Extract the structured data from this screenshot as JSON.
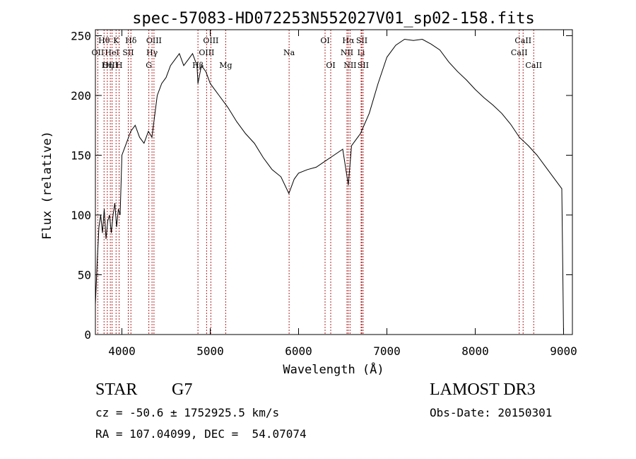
{
  "chart_data": {
    "type": "line",
    "title": "spec-57083-HD072253N552027V01_sp02-158.fits",
    "xlabel": "Wavelength (Å)",
    "ylabel": "Flux (relative)",
    "xlim": [
      3700,
      9100
    ],
    "ylim": [
      0,
      255
    ],
    "xticks": [
      {
        "value": 4000,
        "label": "4000"
      },
      {
        "value": 5000,
        "label": "5000"
      },
      {
        "value": 6000,
        "label": "6000"
      },
      {
        "value": 7000,
        "label": "7000"
      },
      {
        "value": 8000,
        "label": "8000"
      },
      {
        "value": 9000,
        "label": "9000"
      }
    ],
    "yticks": [
      {
        "value": 0,
        "label": "0"
      },
      {
        "value": 50,
        "label": "50"
      },
      {
        "value": 100,
        "label": "100"
      },
      {
        "value": 150,
        "label": "150"
      },
      {
        "value": 200,
        "label": "200"
      },
      {
        "value": 250,
        "label": "250"
      }
    ],
    "series": [
      {
        "name": "flux",
        "x": [
          3700,
          3720,
          3740,
          3760,
          3780,
          3800,
          3820,
          3840,
          3860,
          3880,
          3900,
          3920,
          3940,
          3960,
          3980,
          4000,
          4050,
          4100,
          4150,
          4200,
          4250,
          4300,
          4340,
          4400,
          4450,
          4500,
          4550,
          4600,
          4650,
          4700,
          4750,
          4800,
          4850,
          4861,
          4900,
          4950,
          5000,
          5100,
          5200,
          5300,
          5400,
          5500,
          5600,
          5700,
          5800,
          5890,
          5950,
          6000,
          6100,
          6200,
          6300,
          6400,
          6500,
          6563,
          6600,
          6700,
          6800,
          6900,
          7000,
          7100,
          7200,
          7300,
          7400,
          7500,
          7600,
          7700,
          7800,
          7900,
          8000,
          8100,
          8200,
          8300,
          8400,
          8500,
          8600,
          8700,
          8800,
          8900,
          8980,
          9000
        ],
        "y": [
          25,
          60,
          90,
          100,
          85,
          105,
          80,
          95,
          100,
          85,
          100,
          110,
          90,
          105,
          100,
          150,
          160,
          170,
          175,
          165,
          160,
          170,
          165,
          200,
          210,
          215,
          225,
          230,
          235,
          225,
          230,
          235,
          225,
          210,
          225,
          220,
          210,
          200,
          190,
          178,
          168,
          160,
          148,
          138,
          132,
          118,
          130,
          135,
          138,
          140,
          145,
          150,
          155,
          125,
          158,
          168,
          185,
          210,
          232,
          242,
          247,
          246,
          247,
          243,
          238,
          228,
          220,
          213,
          205,
          198,
          192,
          185,
          176,
          165,
          158,
          150,
          140,
          130,
          122,
          0
        ]
      }
    ],
    "line_color": "#000000",
    "spectral_lines": [
      {
        "label": "Hθ",
        "wavelength": 3798,
        "row": 1
      },
      {
        "label": "OII",
        "wavelength": 3727,
        "row": 2
      },
      {
        "label": "OIII",
        "wavelength": 3869,
        "row": 3
      },
      {
        "label": "K",
        "wavelength": 3934,
        "row": 1
      },
      {
        "label": "HeI",
        "wavelength": 3889,
        "row": 2
      },
      {
        "label": "Hη",
        "wavelength": 3835,
        "row": 3
      },
      {
        "label": "Hδ",
        "wavelength": 4102,
        "row": 1
      },
      {
        "label": "SII",
        "wavelength": 4072,
        "row": 2
      },
      {
        "label": "H",
        "wavelength": 3969,
        "row": 3
      },
      {
        "label": "OIII",
        "wavelength": 4363,
        "row": 1
      },
      {
        "label": "Hγ",
        "wavelength": 4341,
        "row": 2
      },
      {
        "label": "G",
        "wavelength": 4305,
        "row": 3
      },
      {
        "label": "OIII",
        "wavelength": 5007,
        "row": 1
      },
      {
        "label": "OIII",
        "wavelength": 4959,
        "row": 2
      },
      {
        "label": "Hβ",
        "wavelength": 4861,
        "row": 3
      },
      {
        "label": "Mg",
        "wavelength": 5175,
        "row": 3
      },
      {
        "label": "Na",
        "wavelength": 5893,
        "row": 2
      },
      {
        "label": "OI",
        "wavelength": 6300,
        "row": 1
      },
      {
        "label": "OI",
        "wavelength": 6364,
        "row": 3
      },
      {
        "label": "Hα",
        "wavelength": 6563,
        "row": 1
      },
      {
        "label": "NII",
        "wavelength": 6548,
        "row": 2
      },
      {
        "label": "NII",
        "wavelength": 6583,
        "row": 3
      },
      {
        "label": "SII",
        "wavelength": 6716,
        "row": 1
      },
      {
        "label": "Li",
        "wavelength": 6708,
        "row": 2
      },
      {
        "label": "SII",
        "wavelength": 6731,
        "row": 3
      },
      {
        "label": "CaII",
        "wavelength": 8542,
        "row": 1
      },
      {
        "label": "CaII",
        "wavelength": 8498,
        "row": 2
      },
      {
        "label": "CaII",
        "wavelength": 8662,
        "row": 3
      }
    ],
    "marker_color": "#b22222"
  },
  "info": {
    "object_class": "STAR",
    "subclass": "G7",
    "survey": "LAMOST DR3",
    "cz_line": "cz = -50.6 ± 1752925.5 km/s",
    "obs_date_line": "Obs-Date: 20150301",
    "radec_line": "RA = 107.04099, DEC =  54.07074"
  }
}
